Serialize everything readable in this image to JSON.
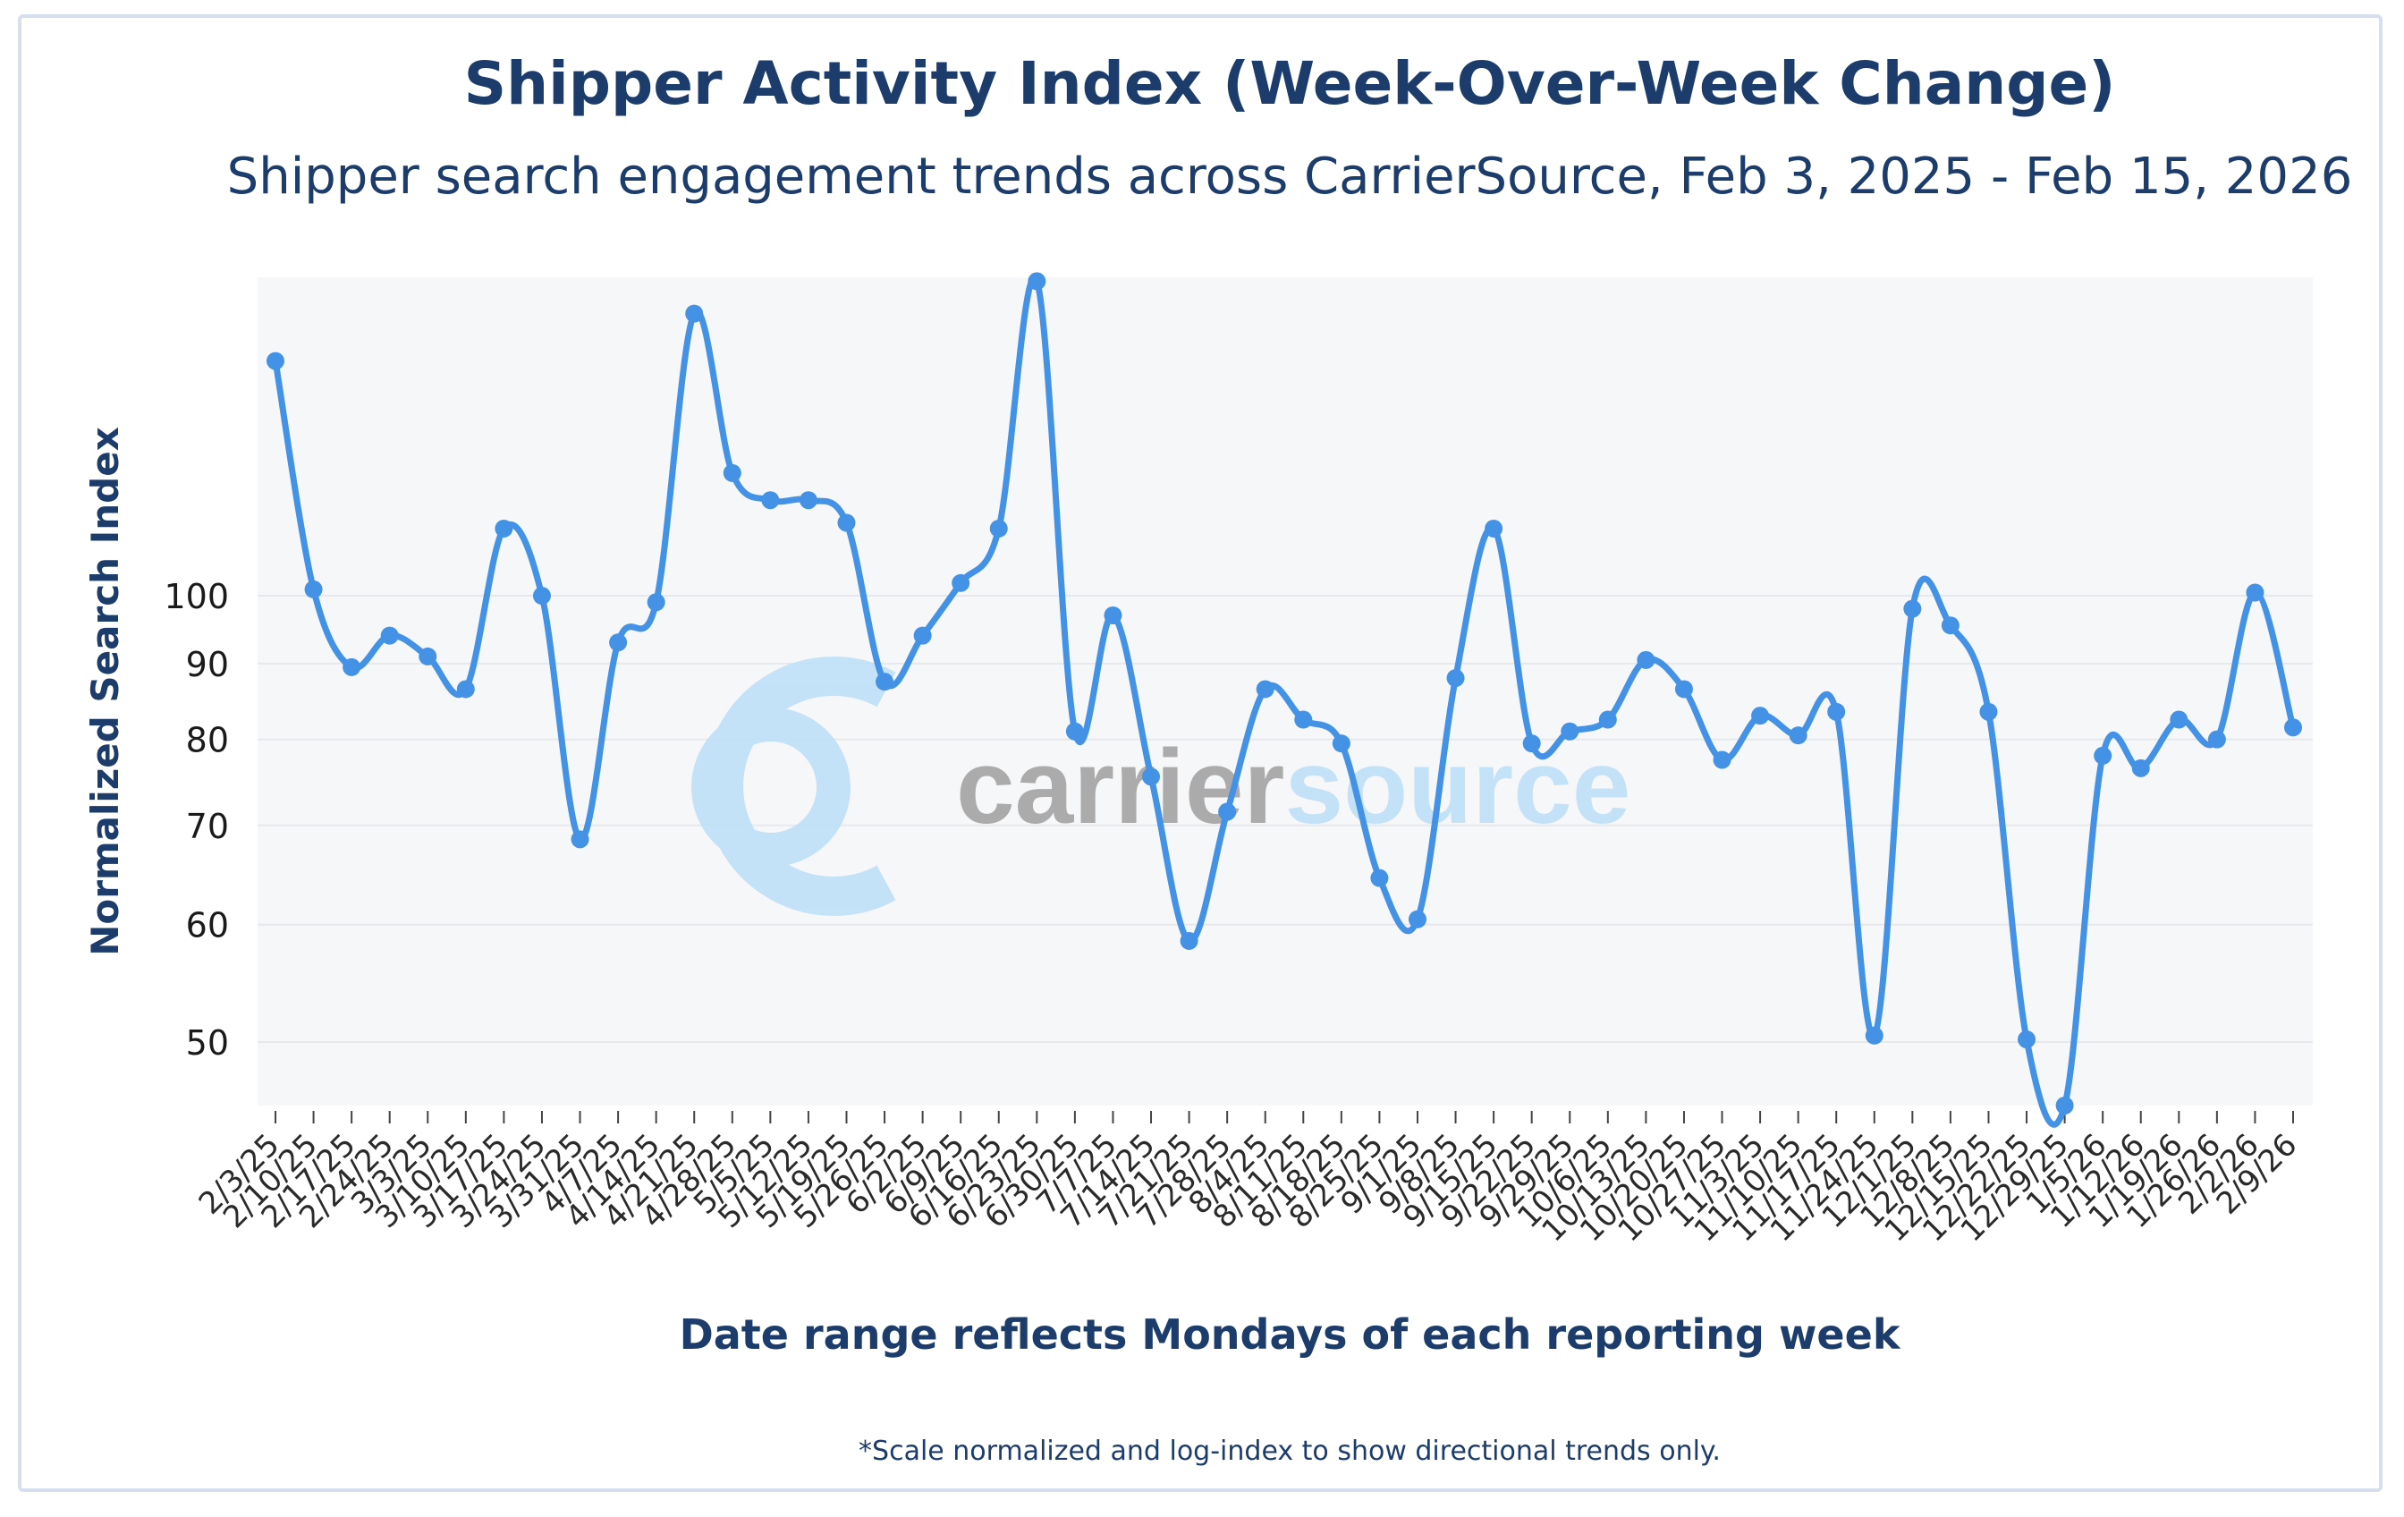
{
  "chart_data": {
    "type": "line",
    "title": "Shipper Activity Index (Week-Over-Week Change)",
    "subtitle": "Shipper search engagement trends across CarrierSource, Feb 3, 2025 - Feb 15, 2026",
    "ylabel": "Normalized Search Index",
    "xlabel": "Date range reflects Mondays of each reporting week",
    "footnote": "*Scale normalized and log-index to show directional trends only.",
    "watermark": {
      "text_dark": "carrier",
      "text_light": "source",
      "color_dark": "#a3a3a3",
      "color_light": "#bfe0f7"
    },
    "y_scale": "log",
    "ylim": [
      45.3,
      164
    ],
    "yticks": [
      50,
      60,
      70,
      80,
      90,
      100
    ],
    "line_color": "#4492e6",
    "plot_background": "#f6f7f9",
    "categories": [
      "2/3/25",
      "2/10/25",
      "2/17/25",
      "2/24/25",
      "3/3/25",
      "3/10/25",
      "3/17/25",
      "3/24/25",
      "3/31/25",
      "4/7/25",
      "4/14/25",
      "4/21/25",
      "4/28/25",
      "5/5/25",
      "5/12/25",
      "5/19/25",
      "5/26/25",
      "6/2/25",
      "6/9/25",
      "6/16/25",
      "6/23/25",
      "6/30/25",
      "7/7/25",
      "7/14/25",
      "7/21/25",
      "7/28/25",
      "8/4/25",
      "8/11/25",
      "8/18/25",
      "8/25/25",
      "9/1/25",
      "9/8/25",
      "9/15/25",
      "9/22/25",
      "9/29/25",
      "10/6/25",
      "10/13/25",
      "10/20/25",
      "10/27/25",
      "11/3/25",
      "11/10/25",
      "11/17/25",
      "11/24/25",
      "12/1/25",
      "12/8/25",
      "12/15/25",
      "12/22/25",
      "12/29/25",
      "1/5/26",
      "1/12/26",
      "1/19/26",
      "1/26/26",
      "2/2/26",
      "2/9/26"
    ],
    "series": [
      {
        "name": "Normalized Search Index",
        "values": [
          144,
          101,
          89.5,
          94,
          91,
          86.5,
          111,
          100,
          68.5,
          93,
          99,
          155,
          121,
          116,
          116,
          112,
          87.5,
          94,
          102,
          111,
          163,
          81,
          97,
          75.5,
          58.5,
          71.5,
          86.5,
          82.5,
          79.5,
          64.5,
          60.5,
          88,
          111,
          79.5,
          81,
          82.5,
          90.5,
          86.5,
          77.5,
          83,
          80.5,
          83.5,
          50.5,
          98,
          95.5,
          83.5,
          50.2,
          45.3,
          78,
          76.5,
          82.5,
          80,
          100.5,
          81.5
        ]
      }
    ]
  }
}
